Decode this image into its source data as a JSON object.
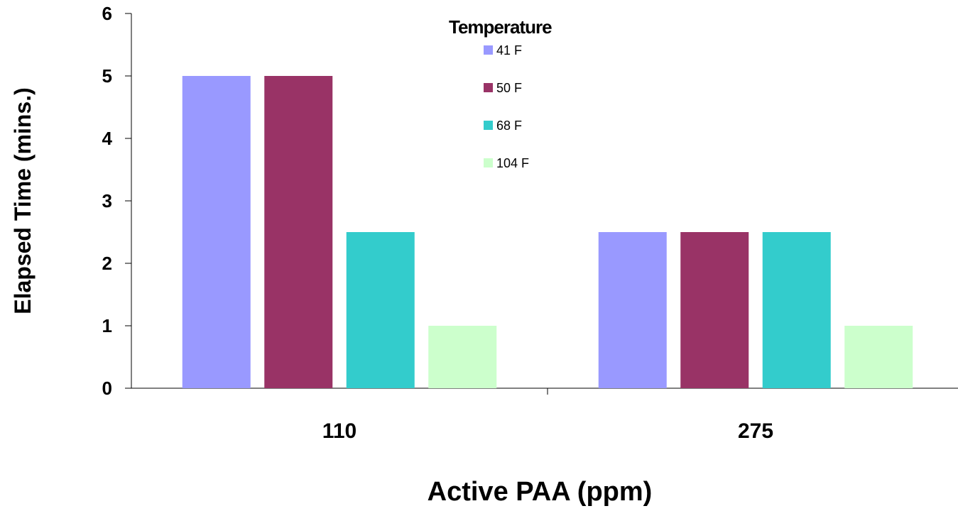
{
  "chart_data": {
    "type": "bar",
    "categories": [
      "110",
      "275"
    ],
    "series": [
      {
        "name": "41 F",
        "color": "#9999ff",
        "values": [
          5,
          2.5
        ]
      },
      {
        "name": "50 F",
        "color": "#993366",
        "values": [
          5,
          2.5
        ]
      },
      {
        "name": "68 F",
        "color": "#33cccc",
        "values": [
          2.5,
          2.5
        ]
      },
      {
        "name": "104 F",
        "color": "#ccffcc",
        "values": [
          1,
          1
        ]
      }
    ],
    "title": "",
    "xlabel": "Active PAA (ppm)",
    "ylabel": "Elapsed Time (mins.)",
    "ylim": [
      0,
      6
    ],
    "yticks": [
      0,
      1,
      2,
      3,
      4,
      5,
      6
    ],
    "grid": false,
    "legend": {
      "title": "Temperature",
      "placement": "top-center"
    }
  }
}
